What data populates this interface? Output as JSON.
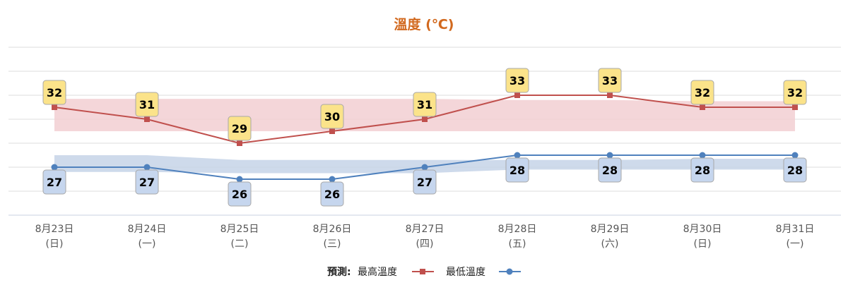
{
  "chart_data": {
    "type": "line",
    "title": "溫度 (℃)",
    "categories": [
      [
        "8月23日",
        "(日)"
      ],
      [
        "8月24日",
        "(一)"
      ],
      [
        "8月25日",
        "(二)"
      ],
      [
        "8月26日",
        "(三)"
      ],
      [
        "8月27日",
        "(四)"
      ],
      [
        "8月28日",
        "(五)"
      ],
      [
        "8月29日",
        "(六)"
      ],
      [
        "8月30日",
        "(日)"
      ],
      [
        "8月31日",
        "(一)"
      ]
    ],
    "series": [
      {
        "name": "最高溫度",
        "values": [
          32,
          31,
          29,
          30,
          31,
          33,
          33,
          32,
          32
        ],
        "color": "#c0504d",
        "band_color": "#f2cfd2",
        "label_color": "#fbe38a",
        "marker": "square"
      },
      {
        "name": "最低溫度",
        "values": [
          27,
          27,
          26,
          26,
          27,
          28,
          28,
          28,
          28
        ],
        "color": "#4f81bd",
        "band_color": "#c6d4e8",
        "label_color": "#c6d6ee",
        "marker": "circle"
      }
    ],
    "bands": [
      {
        "series": "最高溫度",
        "low": [
          30,
          30,
          30,
          30,
          30,
          30,
          30,
          30,
          30
        ],
        "high": [
          32.7,
          32.7,
          32.7,
          32.7,
          32.7,
          32.6,
          32.6,
          32.5,
          32.5
        ]
      },
      {
        "series": "最低溫度",
        "low": [
          26.6,
          26.6,
          26.5,
          26.5,
          26.5,
          26.8,
          26.8,
          26.8,
          26.8
        ],
        "high": [
          28,
          28,
          27.6,
          27.6,
          27.6,
          27.6,
          27.6,
          27.7,
          27.7
        ]
      }
    ],
    "ylim": [
      23,
      37
    ],
    "grid": true,
    "legend": {
      "prefix": "預測:",
      "placement": "bottom-center"
    }
  }
}
